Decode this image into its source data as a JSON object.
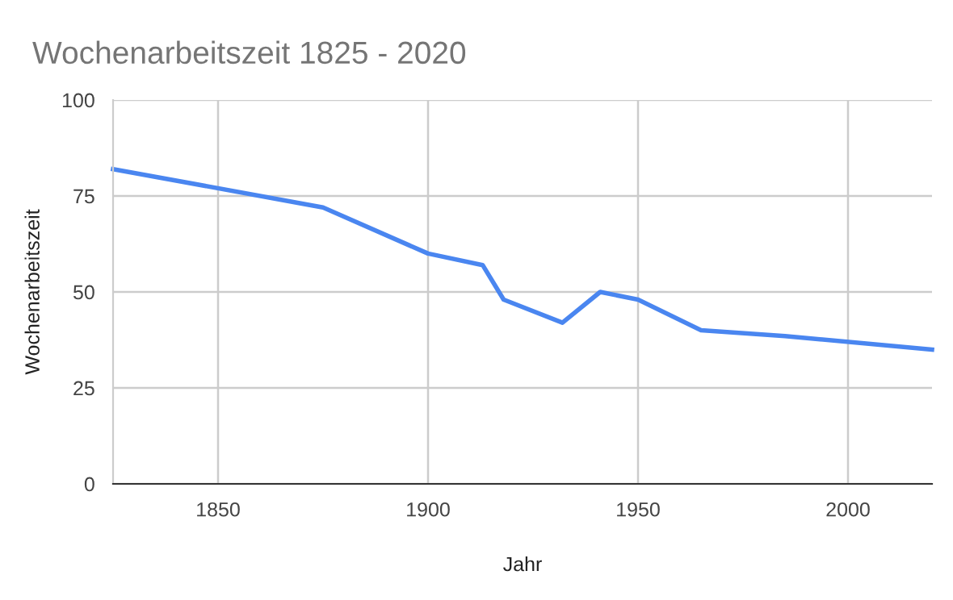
{
  "chart_data": {
    "type": "line",
    "title": "Wochenarbeitszeit 1825 - 2020",
    "xlabel": "Jahr",
    "ylabel": "Wochenarbeitszeit",
    "x": [
      1825,
      1875,
      1900,
      1913,
      1918,
      1932,
      1941,
      1950,
      1965,
      1985,
      2020
    ],
    "series": [
      {
        "color": "#4a86f0",
        "values": [
          82,
          72,
          60,
          57,
          48,
          42,
          50,
          48,
          40,
          38.5,
          35
        ]
      }
    ],
    "xlim": [
      1825,
      2020
    ],
    "xticks": [
      1850,
      1900,
      1950,
      2000
    ],
    "ylim": [
      0,
      100
    ],
    "yticks": [
      0,
      25,
      50,
      75,
      100
    ],
    "grid": true,
    "marker": "none",
    "line_style": "solid"
  }
}
